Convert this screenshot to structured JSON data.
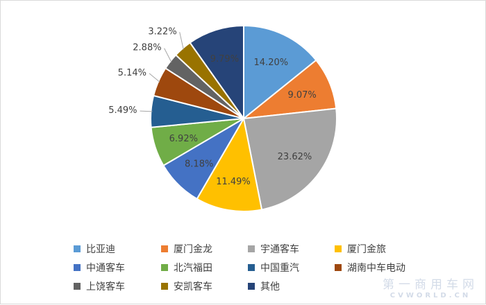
{
  "chart_data": {
    "type": "pie",
    "title": "",
    "categories": [
      "比亚迪",
      "厦门金龙",
      "宇通客车",
      "厦门金旅",
      "中通客车",
      "北汽福田",
      "中国重汽",
      "湖南中车电动",
      "上饶客车",
      "安凯客车",
      "其他"
    ],
    "values": [
      14.2,
      9.07,
      23.62,
      11.49,
      8.18,
      6.92,
      5.49,
      5.14,
      2.88,
      3.22,
      9.79
    ],
    "labels": [
      "14.20%",
      "9.07%",
      "23.62%",
      "11.49%",
      "8.18%",
      "6.92%",
      "5.49%",
      "5.14%",
      "2.88%",
      "3.22%",
      "9.79%"
    ],
    "colors": [
      "#5b9bd5",
      "#ed7d31",
      "#a5a5a5",
      "#ffc000",
      "#4472c4",
      "#70ad47",
      "#255e91",
      "#9e480e",
      "#636363",
      "#997300",
      "#264478"
    ],
    "start_angle": "12 o'clock",
    "direction": "clockwise",
    "legend_position": "bottom"
  },
  "watermark": {
    "cn": "第一商用车网",
    "en": "CVWORLD.CN"
  }
}
